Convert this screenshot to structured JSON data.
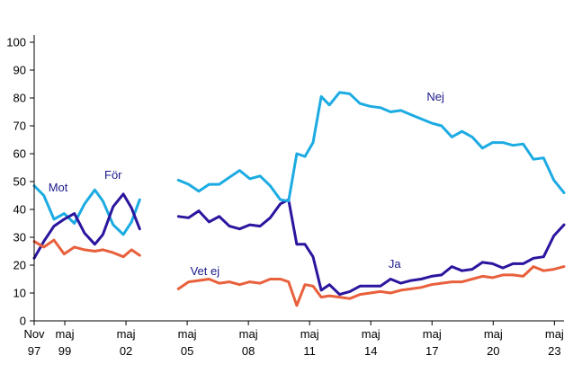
{
  "chart_data": {
    "type": "line",
    "title": "",
    "xlabel": "",
    "ylabel": "",
    "ylim": [
      0,
      100
    ],
    "y_ticks": [
      0,
      10,
      20,
      30,
      40,
      50,
      60,
      70,
      80,
      90,
      100
    ],
    "xlim": [
      1997.83,
      2023.8
    ],
    "x_ticks": [
      {
        "x": 1997.83,
        "line1": "Nov",
        "line2": "97"
      },
      {
        "x": 1999.33,
        "line1": "maj",
        "line2": "99"
      },
      {
        "x": 2002.33,
        "line1": "maj",
        "line2": "02"
      },
      {
        "x": 2005.33,
        "line1": "maj",
        "line2": "05"
      },
      {
        "x": 2008.33,
        "line1": "maj",
        "line2": "08"
      },
      {
        "x": 2011.33,
        "line1": "maj",
        "line2": "11"
      },
      {
        "x": 2014.33,
        "line1": "maj",
        "line2": "14"
      },
      {
        "x": 2017.33,
        "line1": "maj",
        "line2": "17"
      },
      {
        "x": 2020.33,
        "line1": "maj",
        "line2": "20"
      },
      {
        "x": 2023.33,
        "line1": "maj",
        "line2": "23"
      }
    ],
    "grid": false,
    "series": [
      {
        "name": "Mot",
        "color": "#1cabe2",
        "segments": [
          [
            [
              1997.83,
              48.5
            ],
            [
              1998.3,
              45
            ],
            [
              1998.8,
              36.5
            ],
            [
              1999.3,
              38.5
            ],
            [
              1999.8,
              35
            ],
            [
              2000.3,
              42
            ],
            [
              2000.8,
              47
            ],
            [
              2001.2,
              43
            ],
            [
              2001.7,
              34.5
            ],
            [
              2002.2,
              31
            ],
            [
              2002.6,
              35.5
            ],
            [
              2003.0,
              43.5
            ]
          ]
        ]
      },
      {
        "name": "För",
        "color": "#2a159e",
        "segments": [
          [
            [
              1997.83,
              22.5
            ],
            [
              1998.3,
              28.5
            ],
            [
              1998.8,
              34
            ],
            [
              1999.3,
              36.5
            ],
            [
              1999.8,
              38.5
            ],
            [
              2000.3,
              31.5
            ],
            [
              2000.8,
              27.5
            ],
            [
              2001.2,
              31
            ],
            [
              2001.7,
              41
            ],
            [
              2002.2,
              45.5
            ],
            [
              2002.6,
              40.5
            ],
            [
              2003.0,
              33
            ]
          ]
        ]
      },
      {
        "name": "Vet ej",
        "color": "#e8603c",
        "segments": [
          [
            [
              1997.83,
              28.5
            ],
            [
              1998.3,
              26.5
            ],
            [
              1998.8,
              29
            ],
            [
              1999.3,
              24
            ],
            [
              1999.8,
              26.5
            ],
            [
              2000.3,
              25.5
            ],
            [
              2000.8,
              25
            ],
            [
              2001.2,
              25.5
            ],
            [
              2001.7,
              24.5
            ],
            [
              2002.2,
              23
            ],
            [
              2002.6,
              25.5
            ],
            [
              2003.0,
              23.5
            ]
          ],
          [
            [
              2004.9,
              11.5
            ],
            [
              2005.4,
              14
            ],
            [
              2005.9,
              14.5
            ],
            [
              2006.4,
              15
            ],
            [
              2006.9,
              13.5
            ],
            [
              2007.4,
              14
            ],
            [
              2007.9,
              13
            ],
            [
              2008.4,
              14
            ],
            [
              2008.9,
              13.5
            ],
            [
              2009.4,
              15
            ],
            [
              2009.9,
              15
            ],
            [
              2010.3,
              14
            ],
            [
              2010.7,
              5.5
            ],
            [
              2011.1,
              13
            ],
            [
              2011.5,
              12.5
            ],
            [
              2011.9,
              8.5
            ],
            [
              2012.3,
              9
            ],
            [
              2012.8,
              8.5
            ],
            [
              2013.3,
              8
            ],
            [
              2013.8,
              9.5
            ],
            [
              2014.3,
              10
            ],
            [
              2014.8,
              10.5
            ],
            [
              2015.3,
              10
            ],
            [
              2015.8,
              11
            ],
            [
              2016.3,
              11.5
            ],
            [
              2016.8,
              12
            ],
            [
              2017.3,
              13
            ],
            [
              2017.8,
              13.5
            ],
            [
              2018.3,
              14
            ],
            [
              2018.8,
              14
            ],
            [
              2019.3,
              15
            ],
            [
              2019.8,
              16
            ],
            [
              2020.3,
              15.5
            ],
            [
              2020.8,
              16.5
            ],
            [
              2021.3,
              16.5
            ],
            [
              2021.8,
              16
            ],
            [
              2022.3,
              19.5
            ],
            [
              2022.8,
              18
            ],
            [
              2023.3,
              18.5
            ],
            [
              2023.8,
              19.5
            ]
          ]
        ]
      },
      {
        "name": "Ja",
        "color": "#2a159e",
        "segments": [
          [
            [
              2004.9,
              37.5
            ],
            [
              2005.4,
              37
            ],
            [
              2005.9,
              39.5
            ],
            [
              2006.4,
              35.5
            ],
            [
              2006.9,
              37.5
            ],
            [
              2007.4,
              34
            ],
            [
              2007.9,
              33
            ],
            [
              2008.4,
              34.5
            ],
            [
              2008.9,
              34
            ],
            [
              2009.4,
              37
            ],
            [
              2009.9,
              42
            ],
            [
              2010.3,
              43.5
            ],
            [
              2010.7,
              27.5
            ],
            [
              2011.1,
              27.5
            ],
            [
              2011.5,
              23
            ],
            [
              2011.9,
              11
            ],
            [
              2012.3,
              13
            ],
            [
              2012.8,
              9.5
            ],
            [
              2013.3,
              10.5
            ],
            [
              2013.8,
              12.5
            ],
            [
              2014.3,
              12.5
            ],
            [
              2014.8,
              12.5
            ],
            [
              2015.3,
              15
            ],
            [
              2015.8,
              13.5
            ],
            [
              2016.3,
              14.5
            ],
            [
              2016.8,
              15
            ],
            [
              2017.3,
              16
            ],
            [
              2017.8,
              16.5
            ],
            [
              2018.3,
              19.5
            ],
            [
              2018.8,
              18
            ],
            [
              2019.3,
              18.5
            ],
            [
              2019.8,
              21
            ],
            [
              2020.3,
              20.5
            ],
            [
              2020.8,
              19
            ],
            [
              2021.3,
              20.5
            ],
            [
              2021.8,
              20.5
            ],
            [
              2022.3,
              22.5
            ],
            [
              2022.8,
              23
            ],
            [
              2023.3,
              30.5
            ],
            [
              2023.8,
              34.5
            ]
          ]
        ]
      },
      {
        "name": "Nej",
        "color": "#1cabe2",
        "segments": [
          [
            [
              2004.9,
              50.5
            ],
            [
              2005.4,
              49
            ],
            [
              2005.9,
              46.5
            ],
            [
              2006.4,
              49
            ],
            [
              2006.9,
              49
            ],
            [
              2007.4,
              51.5
            ],
            [
              2007.9,
              54
            ],
            [
              2008.4,
              51
            ],
            [
              2008.9,
              52
            ],
            [
              2009.4,
              48.5
            ],
            [
              2009.9,
              43.5
            ],
            [
              2010.3,
              43
            ],
            [
              2010.7,
              60
            ],
            [
              2011.1,
              59
            ],
            [
              2011.5,
              64
            ],
            [
              2011.9,
              80.5
            ],
            [
              2012.3,
              77.5
            ],
            [
              2012.8,
              82
            ],
            [
              2013.3,
              81.5
            ],
            [
              2013.8,
              78
            ],
            [
              2014.3,
              77
            ],
            [
              2014.8,
              76.5
            ],
            [
              2015.3,
              75
            ],
            [
              2015.8,
              75.5
            ],
            [
              2016.3,
              74
            ],
            [
              2016.8,
              72.5
            ],
            [
              2017.3,
              71
            ],
            [
              2017.8,
              70
            ],
            [
              2018.3,
              66
            ],
            [
              2018.8,
              68
            ],
            [
              2019.3,
              66
            ],
            [
              2019.8,
              62
            ],
            [
              2020.3,
              64
            ],
            [
              2020.8,
              64
            ],
            [
              2021.3,
              63
            ],
            [
              2021.8,
              63.5
            ],
            [
              2022.3,
              58
            ],
            [
              2022.8,
              58.5
            ],
            [
              2023.3,
              50.5
            ],
            [
              2023.8,
              46
            ]
          ]
        ]
      }
    ],
    "annotations": [
      {
        "text": "Mot",
        "x": 1999.0,
        "y": 46.5
      },
      {
        "text": "För",
        "x": 2001.7,
        "y": 51
      },
      {
        "text": "Vet ej",
        "x": 2006.2,
        "y": 16.5
      },
      {
        "text": "Ja",
        "x": 2015.5,
        "y": 19
      },
      {
        "text": "Nej",
        "x": 2017.5,
        "y": 79
      }
    ]
  }
}
